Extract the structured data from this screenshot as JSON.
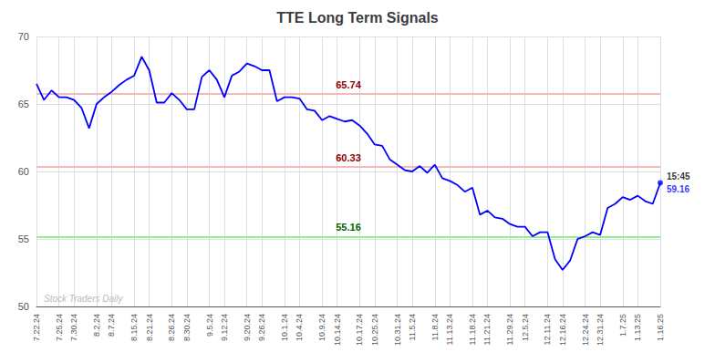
{
  "chart_data": {
    "type": "line",
    "title": "TTE Long Term Signals",
    "categories": [
      "7.22.24",
      null,
      null,
      "7.25.24",
      null,
      "7.30.24",
      null,
      null,
      "8.2.24",
      null,
      "8.7.24",
      null,
      null,
      "8.15.24",
      null,
      "8.21.24",
      null,
      null,
      "8.26.24",
      null,
      "8.30.24",
      null,
      null,
      "9.5.24",
      null,
      "9.12.24",
      null,
      null,
      "9.20.24",
      null,
      "9.26.24",
      null,
      null,
      "10.1.24",
      null,
      "10.4.24",
      null,
      null,
      "10.9.24",
      null,
      "10.14.24",
      null,
      null,
      "10.17.24",
      null,
      "10.25.24",
      null,
      null,
      "10.31.24",
      null,
      "11.5.24",
      null,
      null,
      "11.8.24",
      null,
      "11.13.24",
      null,
      null,
      "11.18.24",
      null,
      "11.21.24",
      null,
      null,
      "11.29.24",
      null,
      "12.5.24",
      null,
      null,
      "12.11.24",
      null,
      "12.16.24",
      null,
      null,
      "12.24.24",
      null,
      "12.31.24",
      null,
      null,
      "1.7.25",
      null,
      "1.13.25",
      null,
      null,
      "1.16.25"
    ],
    "values": [
      66.5,
      65.3,
      66.0,
      65.5,
      65.5,
      65.3,
      64.7,
      63.2,
      65.0,
      65.5,
      65.9,
      66.4,
      66.8,
      67.1,
      68.5,
      67.5,
      65.1,
      65.1,
      65.8,
      65.3,
      64.6,
      64.6,
      67.0,
      67.5,
      66.8,
      65.5,
      67.1,
      67.4,
      68.0,
      67.8,
      67.5,
      67.5,
      65.2,
      65.5,
      65.5,
      65.4,
      64.6,
      64.5,
      63.8,
      64.1,
      63.9,
      63.7,
      63.8,
      63.4,
      62.8,
      62.0,
      61.9,
      60.9,
      60.5,
      60.1,
      60.0,
      60.4,
      59.9,
      60.5,
      59.5,
      59.3,
      59.0,
      58.5,
      58.8,
      56.8,
      57.1,
      56.6,
      56.5,
      56.1,
      55.9,
      55.9,
      55.2,
      55.5,
      55.5,
      53.5,
      52.7,
      53.4,
      55.0,
      55.2,
      55.5,
      55.3,
      57.3,
      57.6,
      58.1,
      57.9,
      58.2,
      57.8,
      57.6,
      59.16
    ],
    "color": "blue",
    "ylim": [
      50,
      70
    ],
    "yticks": [
      50,
      55,
      60,
      65,
      70
    ],
    "grid": true,
    "reference_lines": [
      {
        "value": 65.74,
        "label": "65.74",
        "color": "#f5b8b8",
        "label_color": "#8b0000"
      },
      {
        "value": 60.33,
        "label": "60.33",
        "color": "#f5b8b8",
        "label_color": "#8b0000"
      },
      {
        "value": 55.16,
        "label": "55.16",
        "color": "#90ee90",
        "label_color": "#006400"
      }
    ],
    "last_point": {
      "time": "15:45",
      "value": 59.16,
      "label": "59.16"
    },
    "annotations": [
      {
        "text": "Stock Traders Daily",
        "color": "#bbbbbb"
      }
    ]
  }
}
